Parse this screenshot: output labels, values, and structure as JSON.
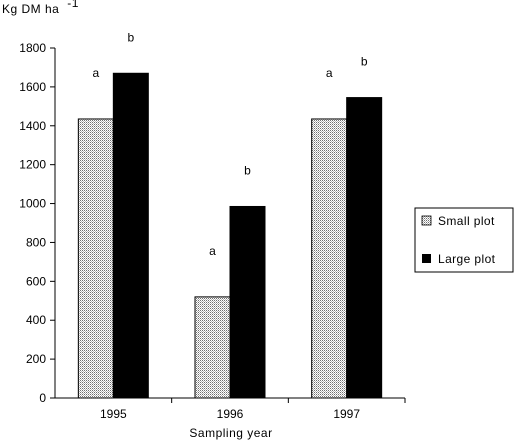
{
  "chart_data": {
    "type": "bar",
    "ylabel": "Kg DM ha",
    "ylabel_superscript": "-1",
    "xlabel": "Sampling year",
    "ylim": [
      0,
      1800
    ],
    "yticks": [
      0,
      200,
      400,
      600,
      800,
      1000,
      1200,
      1400,
      1600,
      1800
    ],
    "categories": [
      "1995",
      "1996",
      "1997"
    ],
    "grid": false,
    "legend_position": "right",
    "series": [
      {
        "name": "Small plot",
        "fill": "dotted",
        "color": "#cfcfcf",
        "values": [
          1435,
          520,
          1435
        ],
        "letters": [
          "a",
          "a",
          "a"
        ]
      },
      {
        "name": "Large plot",
        "fill": "solid",
        "color": "#000000",
        "values": [
          1670,
          985,
          1545
        ],
        "letters": [
          "b",
          "b",
          "b"
        ]
      }
    ]
  }
}
